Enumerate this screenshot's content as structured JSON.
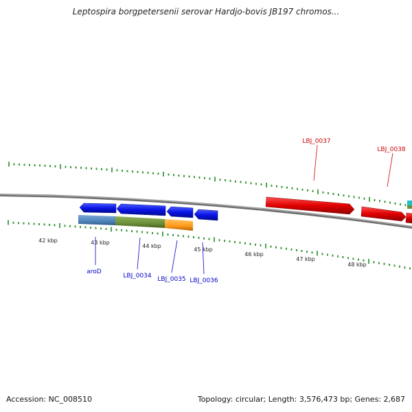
{
  "title": "Leptospira borgpetersenii serovar Hardjo-bovis JB197 chromos...",
  "colors": {
    "backbone": "#808080",
    "tick": "#228b22",
    "blue_feature": "#0a14e6",
    "red_feature": "#e00000"
  },
  "scale_labels": [
    "42 kbp",
    "43 kbp",
    "44 kbp",
    "45 kbp",
    "46 kbp",
    "47 kbp",
    "48 kbp"
  ],
  "gene_labels": {
    "aroD": "aroD",
    "lbj0034": "LBJ_0034",
    "lbj0035": "LBJ_0035",
    "lbj0036": "LBJ_0036",
    "lbj0037": "LBJ_0037",
    "lbj0038": "LBJ_0038"
  },
  "footer": {
    "accession": "Accession: NC_008510",
    "summary": "Topology: circular; Length: 3,576,473 bp; Genes: 2,687"
  }
}
